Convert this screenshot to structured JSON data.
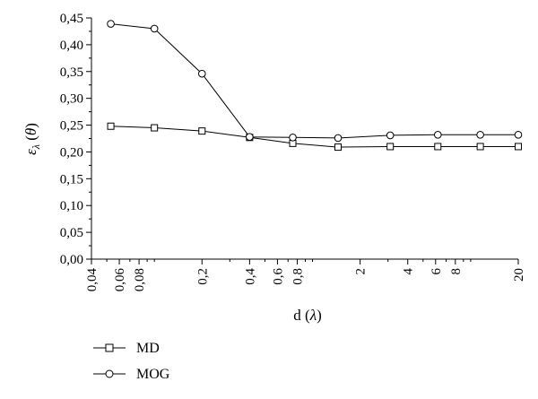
{
  "chart_data": {
    "type": "line",
    "x_scale": "log",
    "xlabel_prefix": "d (",
    "xlabel_symbol": "λ",
    "xlabel_suffix": ")",
    "ylabel_main": "ε",
    "ylabel_sub": "λ",
    "ylabel_arg_open": " (",
    "ylabel_arg": "θ",
    "ylabel_arg_close": ")",
    "ylim": [
      0,
      0.45
    ],
    "xlim": [
      0.04,
      20
    ],
    "grid": false,
    "legend_position": "bottom-left",
    "y_ticks": [
      "0,00",
      "0,05",
      "0,10",
      "0,15",
      "0,20",
      "0,25",
      "0,30",
      "0,35",
      "0,40",
      "0,45"
    ],
    "x_tick_values": [
      0.04,
      0.06,
      0.08,
      0.2,
      0.4,
      0.6,
      0.8,
      2,
      4,
      6,
      8,
      20
    ],
    "x_tick_labels": [
      "0,04",
      "0,06",
      "0,08",
      "0,2",
      "0,4",
      "0,6",
      "0,8",
      "2",
      "4",
      "6",
      "8",
      "20"
    ],
    "series": [
      {
        "name": "MD",
        "marker": "square",
        "x": [
          0.053,
          0.1,
          0.2,
          0.4,
          0.75,
          1.45,
          3.1,
          6.2,
          11.5,
          20
        ],
        "y": [
          0.248,
          0.245,
          0.239,
          0.227,
          0.216,
          0.209,
          0.21,
          0.21,
          0.21,
          0.21
        ]
      },
      {
        "name": "MOG",
        "marker": "circle",
        "x": [
          0.053,
          0.1,
          0.2,
          0.4,
          0.75,
          1.45,
          3.1,
          6.2,
          11.5,
          20
        ],
        "y": [
          0.439,
          0.43,
          0.346,
          0.228,
          0.227,
          0.226,
          0.231,
          0.232,
          0.232,
          0.232
        ]
      }
    ]
  }
}
